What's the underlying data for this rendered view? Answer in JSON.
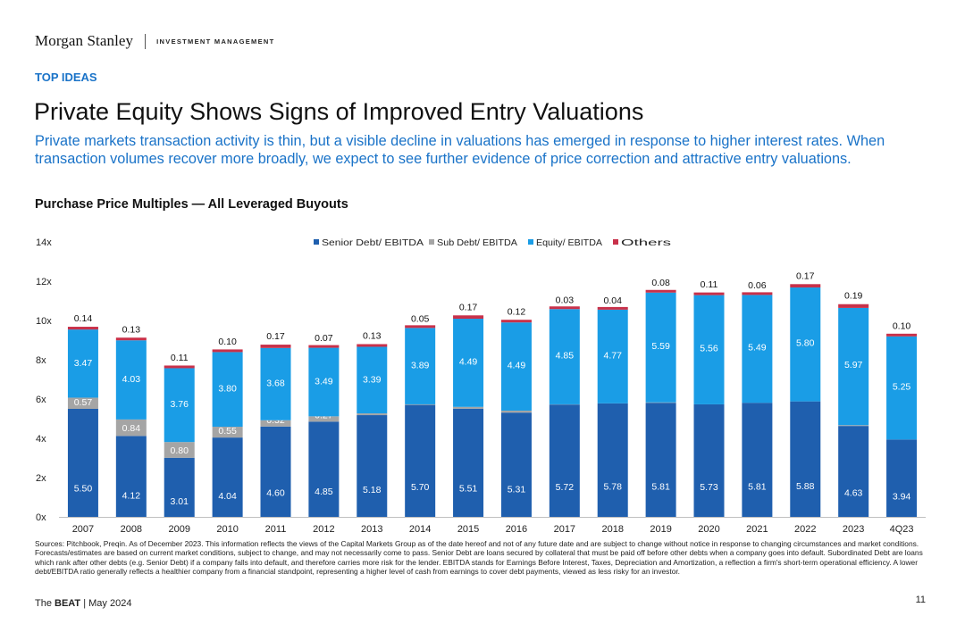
{
  "header": {
    "logo": "Morgan Stanley",
    "division": "INVESTMENT MANAGEMENT",
    "section": "TOP IDEAS"
  },
  "title": "Private Equity Shows Signs of Improved Entry Valuations",
  "subtitle": "Private markets transaction activity is thin, but a visible decline in valuations has emerged in response to higher interest rates. When transaction volumes recover more broadly, we expect to see further evidence of price correction and attractive entry valuations.",
  "chart_title": "Purchase Price Multiples — All Leveraged Buyouts",
  "chart_data": {
    "type": "bar",
    "stacked": true,
    "categories": [
      "2007",
      "2008",
      "2009",
      "2010",
      "2011",
      "2012",
      "2013",
      "2014",
      "2015",
      "2016",
      "2017",
      "2018",
      "2019",
      "2020",
      "2021",
      "2022",
      "2023",
      "4Q23"
    ],
    "series": [
      {
        "name": "Senior Debt/ EBITDA",
        "color": "#1f5fae",
        "values": [
          5.5,
          4.12,
          3.01,
          4.04,
          4.6,
          4.85,
          5.18,
          5.7,
          5.51,
          5.31,
          5.72,
          5.78,
          5.81,
          5.73,
          5.81,
          5.88,
          4.63,
          3.94
        ]
      },
      {
        "name": "Sub Debt/ EBITDA",
        "color": "#a5a5a5",
        "values": [
          0.57,
          0.84,
          0.8,
          0.55,
          0.32,
          0.27,
          0.09,
          0.03,
          0.09,
          0.1,
          0.01,
          0.0,
          0.02,
          0.0,
          0.0,
          0.0,
          0.04,
          0.0
        ]
      },
      {
        "name": "Equity/ EBITDA",
        "color": "#1a9de6",
        "values": [
          3.47,
          4.03,
          3.76,
          3.8,
          3.68,
          3.49,
          3.39,
          3.89,
          4.49,
          4.49,
          4.85,
          4.77,
          5.59,
          5.56,
          5.49,
          5.8,
          5.97,
          5.25
        ]
      },
      {
        "name": "Others",
        "color": "#c8314a",
        "values": [
          0.14,
          0.13,
          0.11,
          0.1,
          0.17,
          0.07,
          0.13,
          0.05,
          0.17,
          0.12,
          0.03,
          0.04,
          0.08,
          0.11,
          0.06,
          0.17,
          0.19,
          0.1
        ]
      }
    ],
    "yticks": [
      "0x",
      "2x",
      "4x",
      "6x",
      "8x",
      "10x",
      "12x",
      "14x"
    ],
    "ylim": [
      0,
      14
    ],
    "legend_position": "top-center",
    "xlabel": "",
    "ylabel": ""
  },
  "notes": "Sources: Pitchbook, Preqin. As of December 2023. This information reflects the views of the Capital Markets Group as of the date hereof and not of any future date and are subject to change without notice in response to changing circumstances and market conditions. Forecasts/estimates are based on current market conditions, subject to change, and may not necessarily come to pass. Senior Debt are loans secured by collateral that must be paid off before other debts when a company goes into default. Subordinated Debt are loans which rank after other debts (e.g. Senior Debt) if a company falls into default, and therefore carries more risk for the lender. EBITDA stands for Earnings Before Interest, Taxes, Depreciation and Amortization, a reflection a firm's short-term operational efficiency. A lower debt/EBITDA ratio generally reflects a healthier company from a financial standpoint, representing a higher level of cash from earnings to cover debt payments, viewed as less risky for an investor.",
  "footer": {
    "pub_prefix": "The ",
    "pub_name": "BEAT",
    "pub_suffix": " | May 2024",
    "page": "11"
  }
}
